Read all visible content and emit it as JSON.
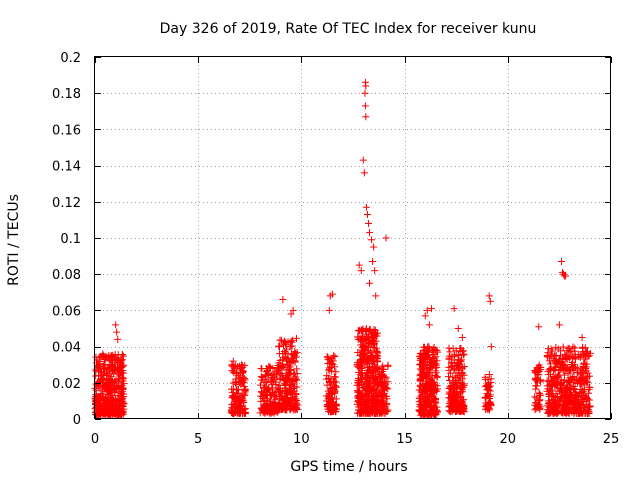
{
  "chart_data": {
    "type": "scatter",
    "title": "Day 326 of 2019, Rate Of TEC Index for receiver kunu",
    "xlabel": "GPS time / hours",
    "ylabel": "ROTI / TECUs",
    "xlim": [
      0,
      25
    ],
    "ylim": [
      0,
      0.2
    ],
    "grid": true,
    "marker": "+",
    "series": [
      {
        "name": "ROTI",
        "color": "#ff0000",
        "clusters": [
          {
            "x_range": [
              0.0,
              1.4
            ],
            "y_range": [
              0.002,
              0.036
            ],
            "count": 420
          },
          {
            "x_range": [
              6.6,
              7.3
            ],
            "y_range": [
              0.003,
              0.03
            ],
            "count": 140
          },
          {
            "x_range": [
              8.0,
              8.9
            ],
            "y_range": [
              0.003,
              0.03
            ],
            "count": 150
          },
          {
            "x_range": [
              8.9,
              9.8
            ],
            "y_range": [
              0.005,
              0.045
            ],
            "count": 220
          },
          {
            "x_range": [
              11.2,
              11.7
            ],
            "y_range": [
              0.004,
              0.035
            ],
            "count": 110
          },
          {
            "x_range": [
              12.7,
              13.7
            ],
            "y_range": [
              0.003,
              0.05
            ],
            "count": 420
          },
          {
            "x_range": [
              13.7,
              14.2
            ],
            "y_range": [
              0.003,
              0.03
            ],
            "count": 90
          },
          {
            "x_range": [
              15.7,
              16.6
            ],
            "y_range": [
              0.002,
              0.04
            ],
            "count": 300
          },
          {
            "x_range": [
              17.1,
              17.9
            ],
            "y_range": [
              0.004,
              0.04
            ],
            "count": 220
          },
          {
            "x_range": [
              18.9,
              19.2
            ],
            "y_range": [
              0.005,
              0.025
            ],
            "count": 50
          },
          {
            "x_range": [
              21.3,
              21.6
            ],
            "y_range": [
              0.005,
              0.03
            ],
            "count": 50
          },
          {
            "x_range": [
              21.9,
              24.0
            ],
            "y_range": [
              0.003,
              0.04
            ],
            "count": 480
          }
        ],
        "outliers": [
          [
            0.2,
            0.034
          ],
          [
            1.0,
            0.052
          ],
          [
            1.05,
            0.048
          ],
          [
            1.1,
            0.044
          ],
          [
            6.7,
            0.032
          ],
          [
            9.1,
            0.066
          ],
          [
            9.5,
            0.058
          ],
          [
            9.6,
            0.06
          ],
          [
            11.4,
            0.068
          ],
          [
            11.5,
            0.069
          ],
          [
            11.35,
            0.06
          ],
          [
            12.8,
            0.085
          ],
          [
            12.9,
            0.082
          ],
          [
            13.0,
            0.143
          ],
          [
            13.05,
            0.136
          ],
          [
            13.1,
            0.186
          ],
          [
            13.12,
            0.184
          ],
          [
            13.08,
            0.18
          ],
          [
            13.1,
            0.173
          ],
          [
            13.12,
            0.167
          ],
          [
            13.15,
            0.117
          ],
          [
            13.2,
            0.113
          ],
          [
            13.25,
            0.108
          ],
          [
            13.3,
            0.103
          ],
          [
            13.4,
            0.099
          ],
          [
            13.5,
            0.095
          ],
          [
            13.45,
            0.087
          ],
          [
            13.55,
            0.082
          ],
          [
            13.3,
            0.075
          ],
          [
            13.6,
            0.068
          ],
          [
            14.1,
            0.1
          ],
          [
            16.0,
            0.057
          ],
          [
            16.1,
            0.06
          ],
          [
            16.3,
            0.061
          ],
          [
            16.2,
            0.052
          ],
          [
            17.4,
            0.061
          ],
          [
            17.6,
            0.05
          ],
          [
            17.8,
            0.045
          ],
          [
            19.1,
            0.068
          ],
          [
            19.15,
            0.065
          ],
          [
            19.2,
            0.04
          ],
          [
            21.5,
            0.051
          ],
          [
            22.6,
            0.087
          ],
          [
            22.65,
            0.081
          ],
          [
            22.7,
            0.08
          ],
          [
            22.75,
            0.079
          ],
          [
            22.8,
            0.079
          ],
          [
            22.5,
            0.052
          ],
          [
            23.6,
            0.045
          ]
        ]
      }
    ],
    "xticks": [
      "0",
      "5",
      "10",
      "15",
      "20",
      "25"
    ],
    "yticks": [
      "0",
      "0.02",
      "0.04",
      "0.06",
      "0.08",
      "0.1",
      "0.12",
      "0.14",
      "0.16",
      "0.18",
      "0.2"
    ]
  }
}
